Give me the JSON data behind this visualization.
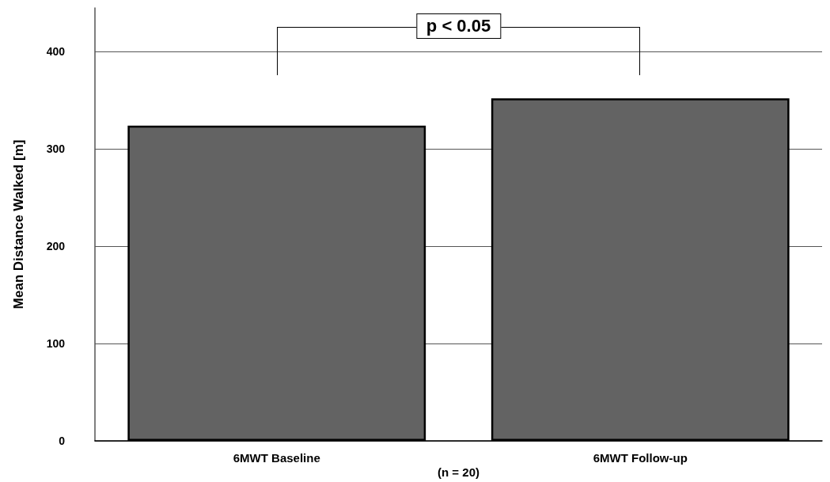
{
  "chart_data": {
    "type": "bar",
    "ylabel": "Mean Distance Walked [m]",
    "categories": [
      "6MWT Baseline",
      "6MWT Follow-up"
    ],
    "values": [
      324,
      352
    ],
    "color": "#636363",
    "ylim": [
      0,
      445
    ],
    "yticks": [
      0,
      100,
      200,
      300,
      400
    ],
    "grid": "y",
    "annotations": [
      "p < 0.05",
      "(n = 20)"
    ]
  }
}
